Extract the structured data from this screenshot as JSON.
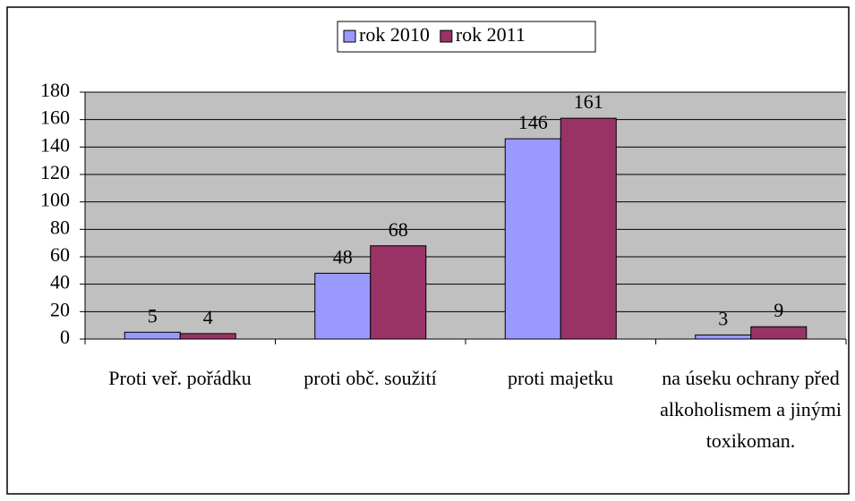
{
  "chart_data": {
    "type": "bar",
    "categories": [
      "Proti veř. pořádku",
      "proti obč. soužití",
      "proti majetku",
      "na úseku ochrany před alkoholismem a jinými toxikoman."
    ],
    "series": [
      {
        "name": "rok 2010",
        "color": "#9999ff",
        "values": [
          5,
          48,
          146,
          3
        ]
      },
      {
        "name": "rok 2011",
        "color": "#993366",
        "values": [
          4,
          68,
          161,
          9
        ]
      }
    ],
    "ylim": [
      0,
      180
    ],
    "yticks": [
      0,
      20,
      40,
      60,
      80,
      100,
      120,
      140,
      160,
      180
    ],
    "grid": true
  }
}
